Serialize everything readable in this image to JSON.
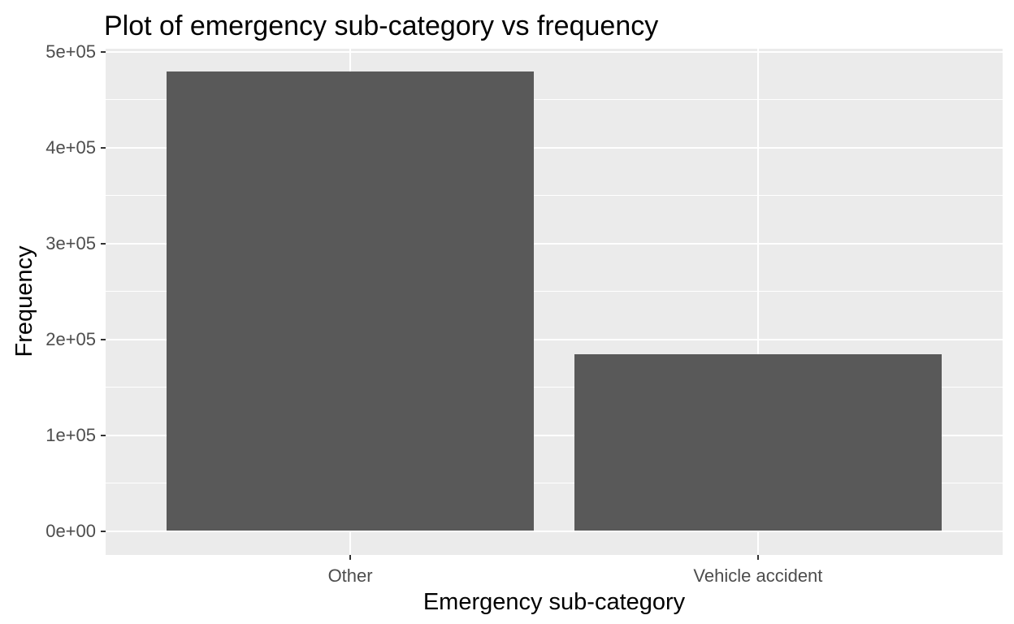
{
  "chart_data": {
    "type": "bar",
    "title": "Plot of emergency sub-category vs frequency",
    "xlabel": "Emergency sub-category",
    "ylabel": "Frequency",
    "categories": [
      "Other",
      "Vehicle accident"
    ],
    "values": [
      479000,
      184000
    ],
    "ylim": [
      0,
      500000
    ],
    "ytick_values": [
      0,
      100000,
      200000,
      300000,
      400000,
      500000
    ],
    "ytick_labels": [
      "0e+00",
      "1e+05",
      "2e+05",
      "3e+05",
      "4e+05",
      "5e+05"
    ],
    "minor_gridline_values": [
      50000,
      150000,
      250000,
      350000,
      450000
    ],
    "grid": "major+minor horizontal, major vertical at category centers",
    "legend_position": "none",
    "bar_width_fraction": 0.9,
    "colors": {
      "bar_fill": "#595959",
      "panel_background": "#EBEBEB",
      "gridline": "#FFFFFF",
      "tick_mark": "#333333",
      "tick_label_text": "#4D4D4D",
      "title_text": "#000000",
      "axis_title_text": "#000000",
      "figure_background": "#FFFFFF"
    }
  }
}
